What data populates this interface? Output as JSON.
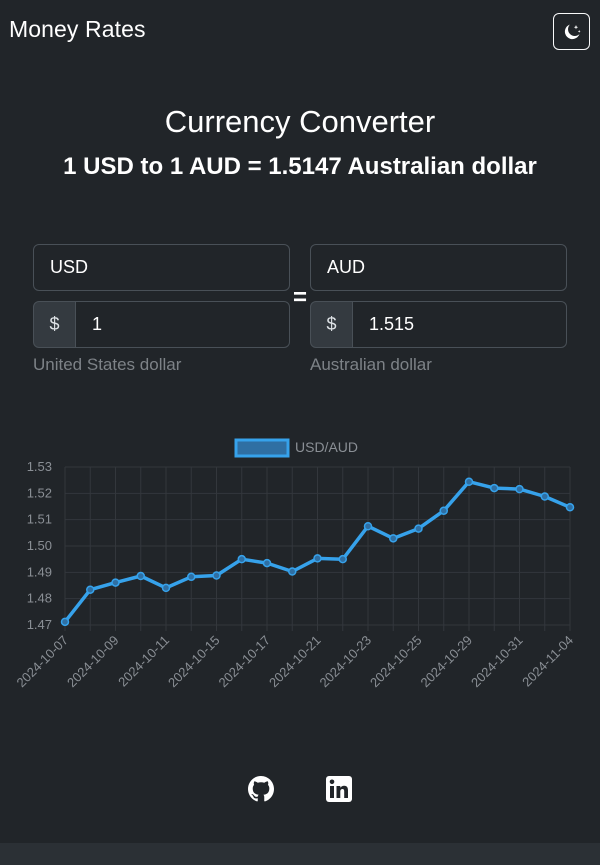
{
  "navbar": {
    "brand": "Money Rates",
    "theme_toggle_icon": "moon-stars-icon"
  },
  "header": {
    "title": "Currency Converter",
    "subtitle": "1 USD to 1 AUD = 1.5147 Australian dollar"
  },
  "converter": {
    "from": {
      "currency": "USD",
      "symbol": "$",
      "amount": "1",
      "name": "United States dollar"
    },
    "equals": "=",
    "to": {
      "currency": "AUD",
      "symbol": "$",
      "amount": "1.515",
      "name": "Australian dollar"
    }
  },
  "chart_data": {
    "type": "line",
    "legend": "USD/AUD",
    "legend_position": "top",
    "series_color": "#36a2eb",
    "grid": true,
    "ylim": [
      1.47,
      1.53
    ],
    "yticks": [
      "1.53",
      "1.52",
      "1.51",
      "1.50",
      "1.49",
      "1.48",
      "1.47"
    ],
    "x": [
      "2024-10-07",
      "2024-10-08",
      "2024-10-09",
      "2024-10-10",
      "2024-10-11",
      "2024-10-14",
      "2024-10-15",
      "2024-10-16",
      "2024-10-17",
      "2024-10-18",
      "2024-10-21",
      "2024-10-22",
      "2024-10-23",
      "2024-10-24",
      "2024-10-25",
      "2024-10-28",
      "2024-10-29",
      "2024-10-30",
      "2024-10-31",
      "2024-11-01",
      "2024-11-04"
    ],
    "xticks": [
      "2024-10-07",
      "2024-10-09",
      "2024-10-11",
      "2024-10-15",
      "2024-10-17",
      "2024-10-21",
      "2024-10-23",
      "2024-10-25",
      "2024-10-29",
      "2024-10-31",
      "2024-11-04"
    ],
    "values": [
      1.4712,
      1.4834,
      1.4861,
      1.4886,
      1.4841,
      1.4883,
      1.4888,
      1.495,
      1.4935,
      1.4903,
      1.4953,
      1.495,
      1.5075,
      1.5029,
      1.5066,
      1.5134,
      1.5244,
      1.522,
      1.5216,
      1.5188,
      1.5147
    ]
  },
  "footer": {
    "github_icon": "github-icon",
    "linkedin_icon": "linkedin-icon"
  }
}
